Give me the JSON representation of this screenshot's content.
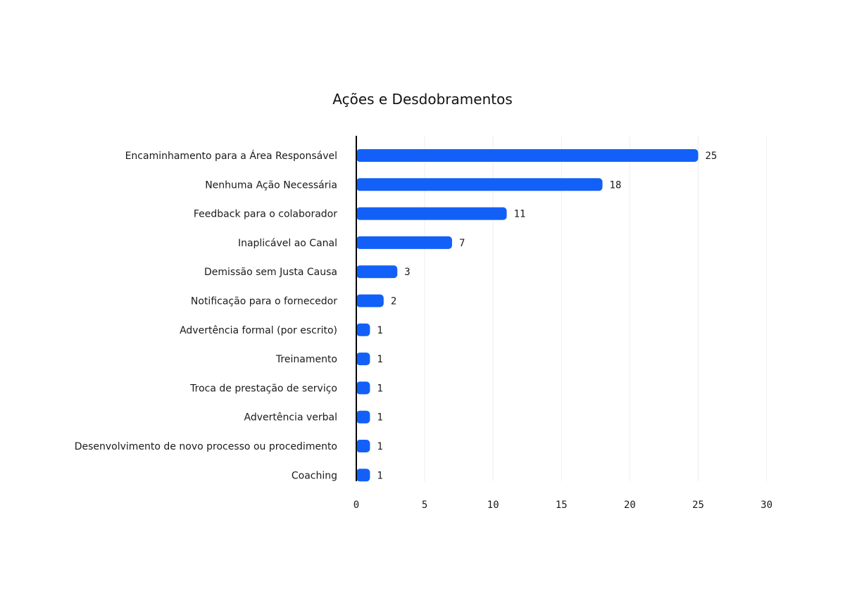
{
  "chart_data": {
    "type": "bar",
    "orientation": "horizontal",
    "title": "Ações e Desdobramentos",
    "xlabel": "",
    "ylabel": "",
    "categories": [
      "Encaminhamento para a Área Responsável",
      "Nenhuma Ação Necessária",
      "Feedback para o colaborador",
      "Inaplicável ao Canal",
      "Demissão sem Justa Causa",
      "Notificação para o fornecedor",
      "Advertência formal (por escrito)",
      "Treinamento",
      "Troca de prestação de serviço",
      "Advertência verbal",
      "Desenvolvimento de novo processo ou procedimento",
      "Coaching"
    ],
    "values": [
      25,
      18,
      11,
      7,
      3,
      2,
      1,
      1,
      1,
      1,
      1,
      1
    ],
    "xlim": [
      0,
      30
    ],
    "xticks": [
      "0",
      "5",
      "10",
      "15",
      "20",
      "25",
      "30"
    ],
    "grid": true,
    "legend": "none",
    "colors": {
      "bar": "#1260f7",
      "grid": "#eeeeee",
      "axis": "#000000",
      "text": "#1a1a1a"
    }
  }
}
